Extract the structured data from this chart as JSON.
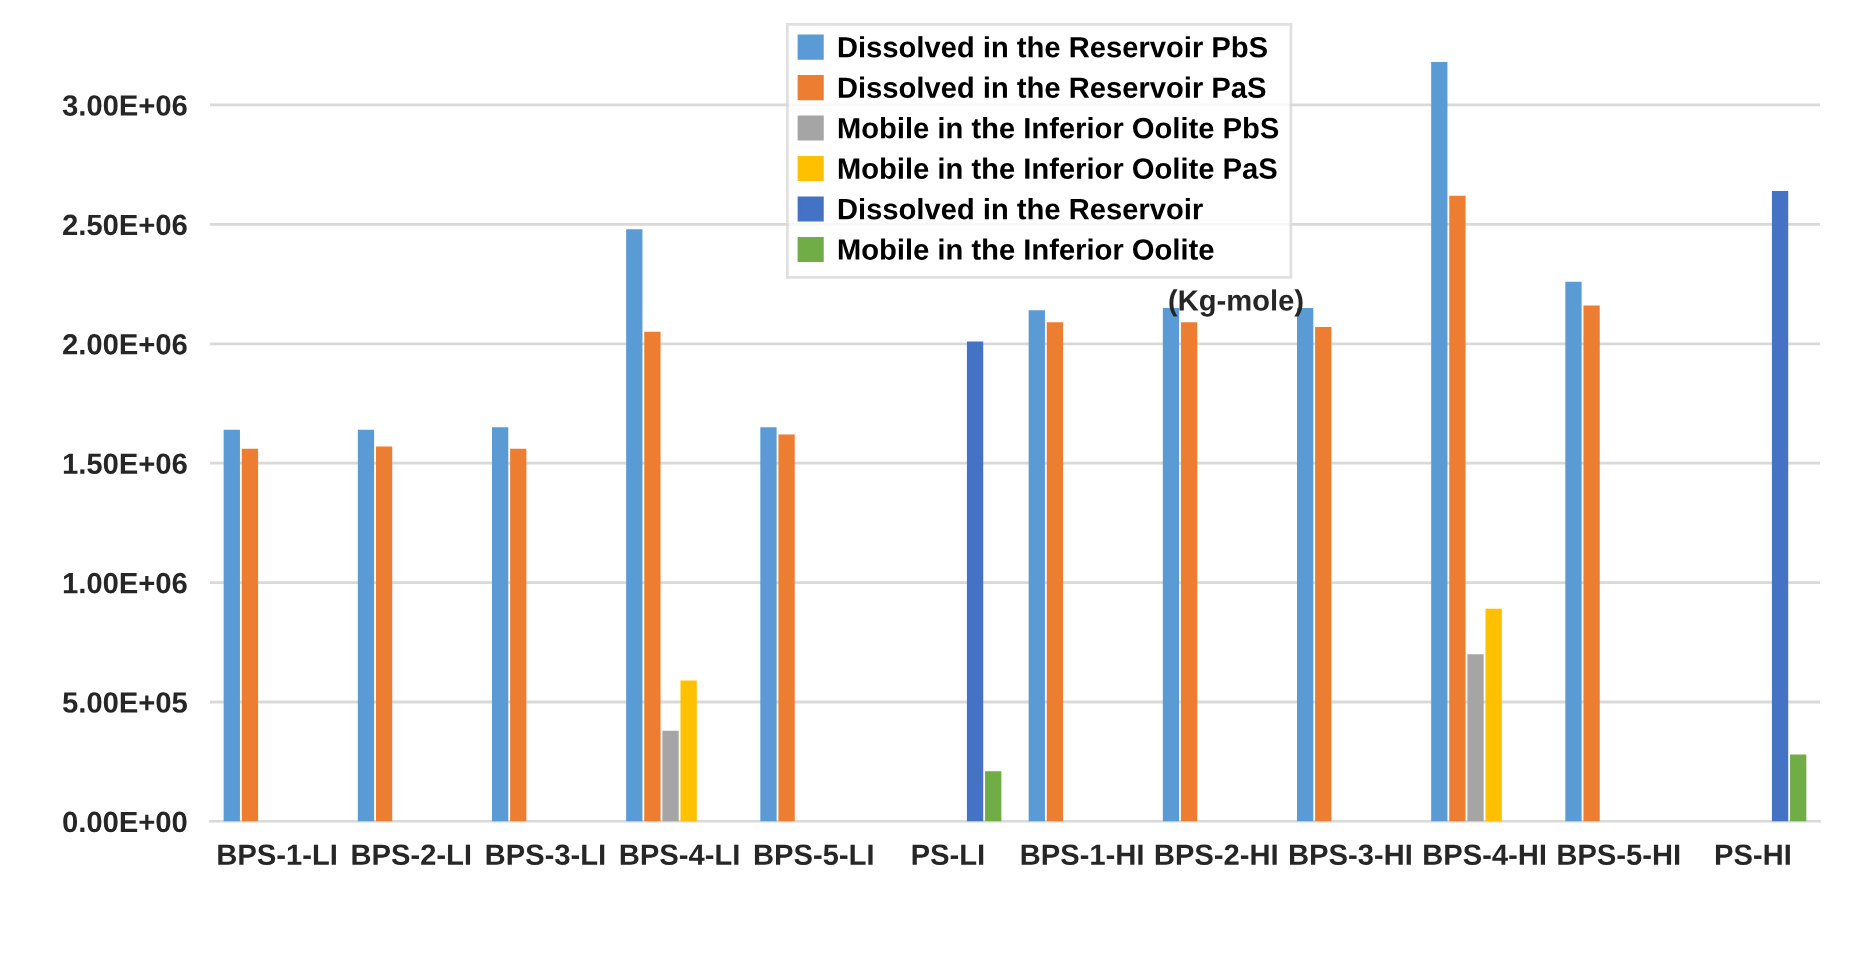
{
  "chart_data": {
    "type": "bar",
    "categories": [
      "BPS-1-LI",
      "BPS-2-LI",
      "BPS-3-LI",
      "BPS-4-LI",
      "BPS-5-LI",
      "PS-LI",
      "BPS-1-HI",
      "BPS-2-HI",
      "BPS-3-HI",
      "BPS-4-HI",
      "BPS-5-HI",
      "PS-HI"
    ],
    "series": [
      {
        "name": "Dissolved in the Reservoir PbS",
        "color": "#5b9bd5",
        "values": [
          1640000,
          1640000,
          1650000,
          2480000,
          1650000,
          null,
          2140000,
          2150000,
          2150000,
          3180000,
          2260000,
          null
        ]
      },
      {
        "name": "Dissolved in the Reservoir PaS",
        "color": "#ed7d31",
        "values": [
          1560000,
          1570000,
          1560000,
          2050000,
          1620000,
          null,
          2090000,
          2090000,
          2070000,
          2620000,
          2160000,
          null
        ]
      },
      {
        "name": "Mobile in the Inferior Oolite PbS",
        "color": "#a5a5a5",
        "values": [
          null,
          null,
          null,
          380000,
          null,
          null,
          null,
          null,
          null,
          700000,
          null,
          null
        ]
      },
      {
        "name": "Mobile in the Inferior Oolite PaS",
        "color": "#ffc000",
        "values": [
          null,
          null,
          null,
          590000,
          null,
          null,
          null,
          null,
          null,
          890000,
          null,
          null
        ]
      },
      {
        "name": "Dissolved in the Reservoir",
        "color": "#4472c4",
        "values": [
          null,
          null,
          null,
          null,
          null,
          2010000,
          null,
          null,
          null,
          null,
          null,
          2640000
        ]
      },
      {
        "name": "Mobile in the Inferior Oolite",
        "color": "#70ad47",
        "values": [
          null,
          null,
          null,
          null,
          null,
          210000,
          null,
          null,
          null,
          null,
          null,
          280000
        ]
      }
    ],
    "ylim": [
      0,
      3350000
    ],
    "yticks": [
      {
        "value": 0,
        "label": "0.00E+00"
      },
      {
        "value": 500000,
        "label": "5.00E+05"
      },
      {
        "value": 1000000,
        "label": "1.00E+06"
      },
      {
        "value": 1500000,
        "label": "1.50E+06"
      },
      {
        "value": 2000000,
        "label": "2.00E+06"
      },
      {
        "value": 2500000,
        "label": "2.50E+06"
      },
      {
        "value": 3000000,
        "label": "3.00E+06"
      }
    ],
    "grid": "y",
    "legend": "top",
    "annotations": [
      "(Kg-mole)"
    ]
  }
}
